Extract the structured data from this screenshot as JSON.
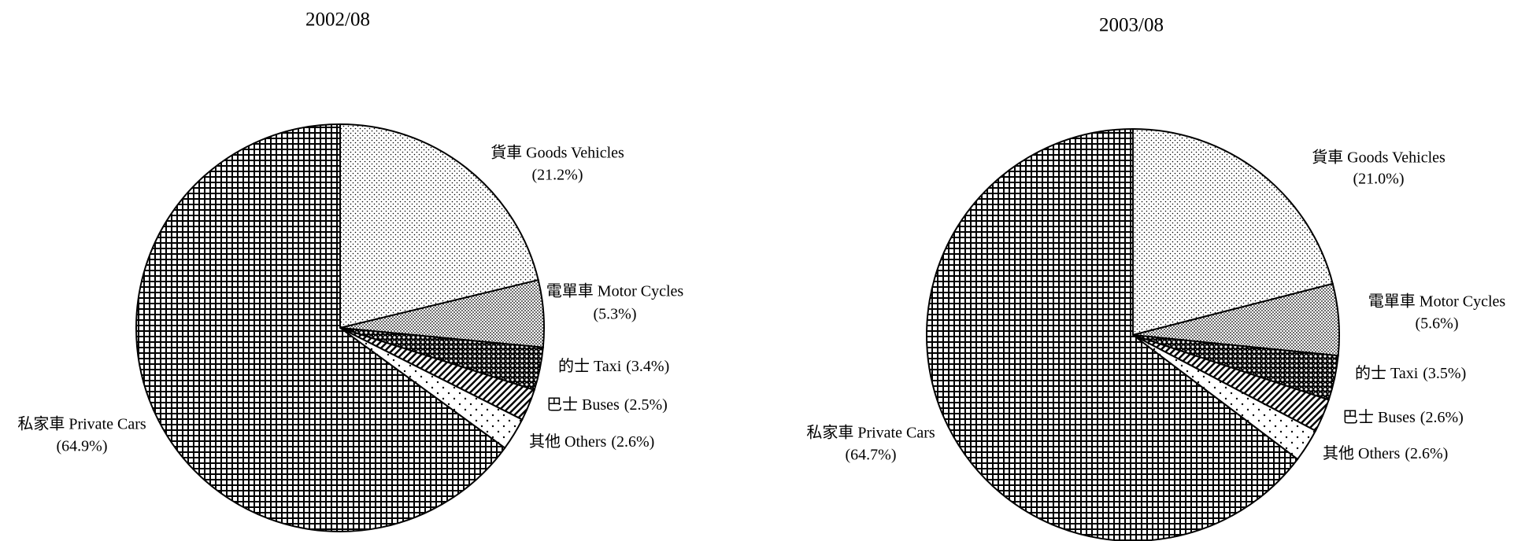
{
  "chart_data": [
    {
      "type": "pie",
      "title": "2002/08",
      "categories": [
        "貨車 Goods Vehicles",
        "電單車 Motor Cycles",
        "的士 Taxi",
        "巴士 Buses",
        "其他 Others",
        "私家車 Private Cars"
      ],
      "values": [
        21.2,
        5.3,
        3.4,
        2.5,
        2.6,
        64.9
      ],
      "value_labels": [
        "(21.2%)",
        "(5.3%)",
        "(3.4%)",
        "(2.5%)",
        "(2.6%)",
        "(64.9%)"
      ]
    },
    {
      "type": "pie",
      "title": "2003/08",
      "categories": [
        "貨車 Goods Vehicles",
        "電單車 Motor Cycles",
        "的士 Taxi",
        "巴士 Buses",
        "其他 Others",
        "私家車 Private Cars"
      ],
      "values": [
        21.0,
        5.6,
        3.5,
        2.6,
        2.6,
        64.7
      ],
      "value_labels": [
        "(21.0%)",
        "(5.6%)",
        "(3.5%)",
        "(2.6%)",
        "(2.6%)",
        "(64.7%)"
      ]
    }
  ]
}
